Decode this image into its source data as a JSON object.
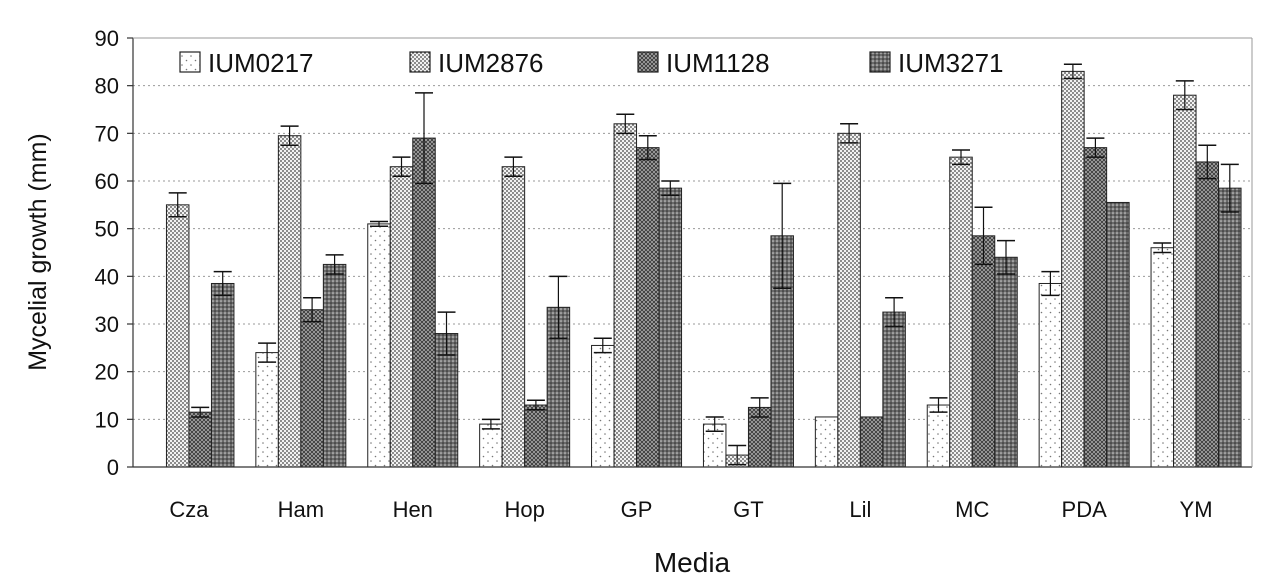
{
  "chart_data": {
    "type": "bar",
    "xlabel": "Media",
    "ylabel": "Mycelial growth (mm)",
    "ylim": [
      0,
      90
    ],
    "yticks": [
      "0",
      "10",
      "20",
      "30",
      "40",
      "50",
      "60",
      "70",
      "80",
      "90"
    ],
    "grid": true,
    "legend_position": "top",
    "categories": [
      "Cza",
      "Ham",
      "Hen",
      "Hop",
      "GP",
      "GT",
      "Lil",
      "MC",
      "PDA",
      "YM"
    ],
    "series": [
      {
        "name": "IUM0217",
        "pattern": "light-dots",
        "color": "#ffffff",
        "values": [
          0,
          24,
          51,
          9,
          25.5,
          9,
          10.5,
          13,
          38.5,
          46
        ],
        "errors": [
          0,
          2,
          0.5,
          1,
          1.5,
          1.5,
          0,
          1.5,
          2.5,
          1
        ]
      },
      {
        "name": "IUM2876",
        "pattern": "dense-dots",
        "color": "#e4e4e4",
        "values": [
          55,
          69.5,
          63,
          63,
          72,
          2.5,
          70,
          65,
          83,
          78
        ],
        "errors": [
          2.5,
          2,
          2,
          2,
          2,
          2,
          2,
          1.5,
          1.5,
          3
        ]
      },
      {
        "name": "IUM1128",
        "pattern": "crosshatch",
        "color": "#8f8f8f",
        "values": [
          11.5,
          33,
          69,
          13,
          67,
          12.5,
          10.5,
          48.5,
          67,
          64
        ],
        "errors": [
          1,
          2.5,
          9.5,
          1,
          2.5,
          2,
          0,
          6,
          2,
          3.5
        ]
      },
      {
        "name": "IUM3271",
        "pattern": "dark-dots",
        "color": "#7a7a7a",
        "values": [
          38.5,
          42.5,
          28,
          33.5,
          58.5,
          48.5,
          32.5,
          44,
          55.5,
          58.5
        ],
        "errors": [
          2.5,
          2,
          4.5,
          6.5,
          1.5,
          11,
          3,
          3.5,
          0,
          5
        ]
      }
    ]
  }
}
